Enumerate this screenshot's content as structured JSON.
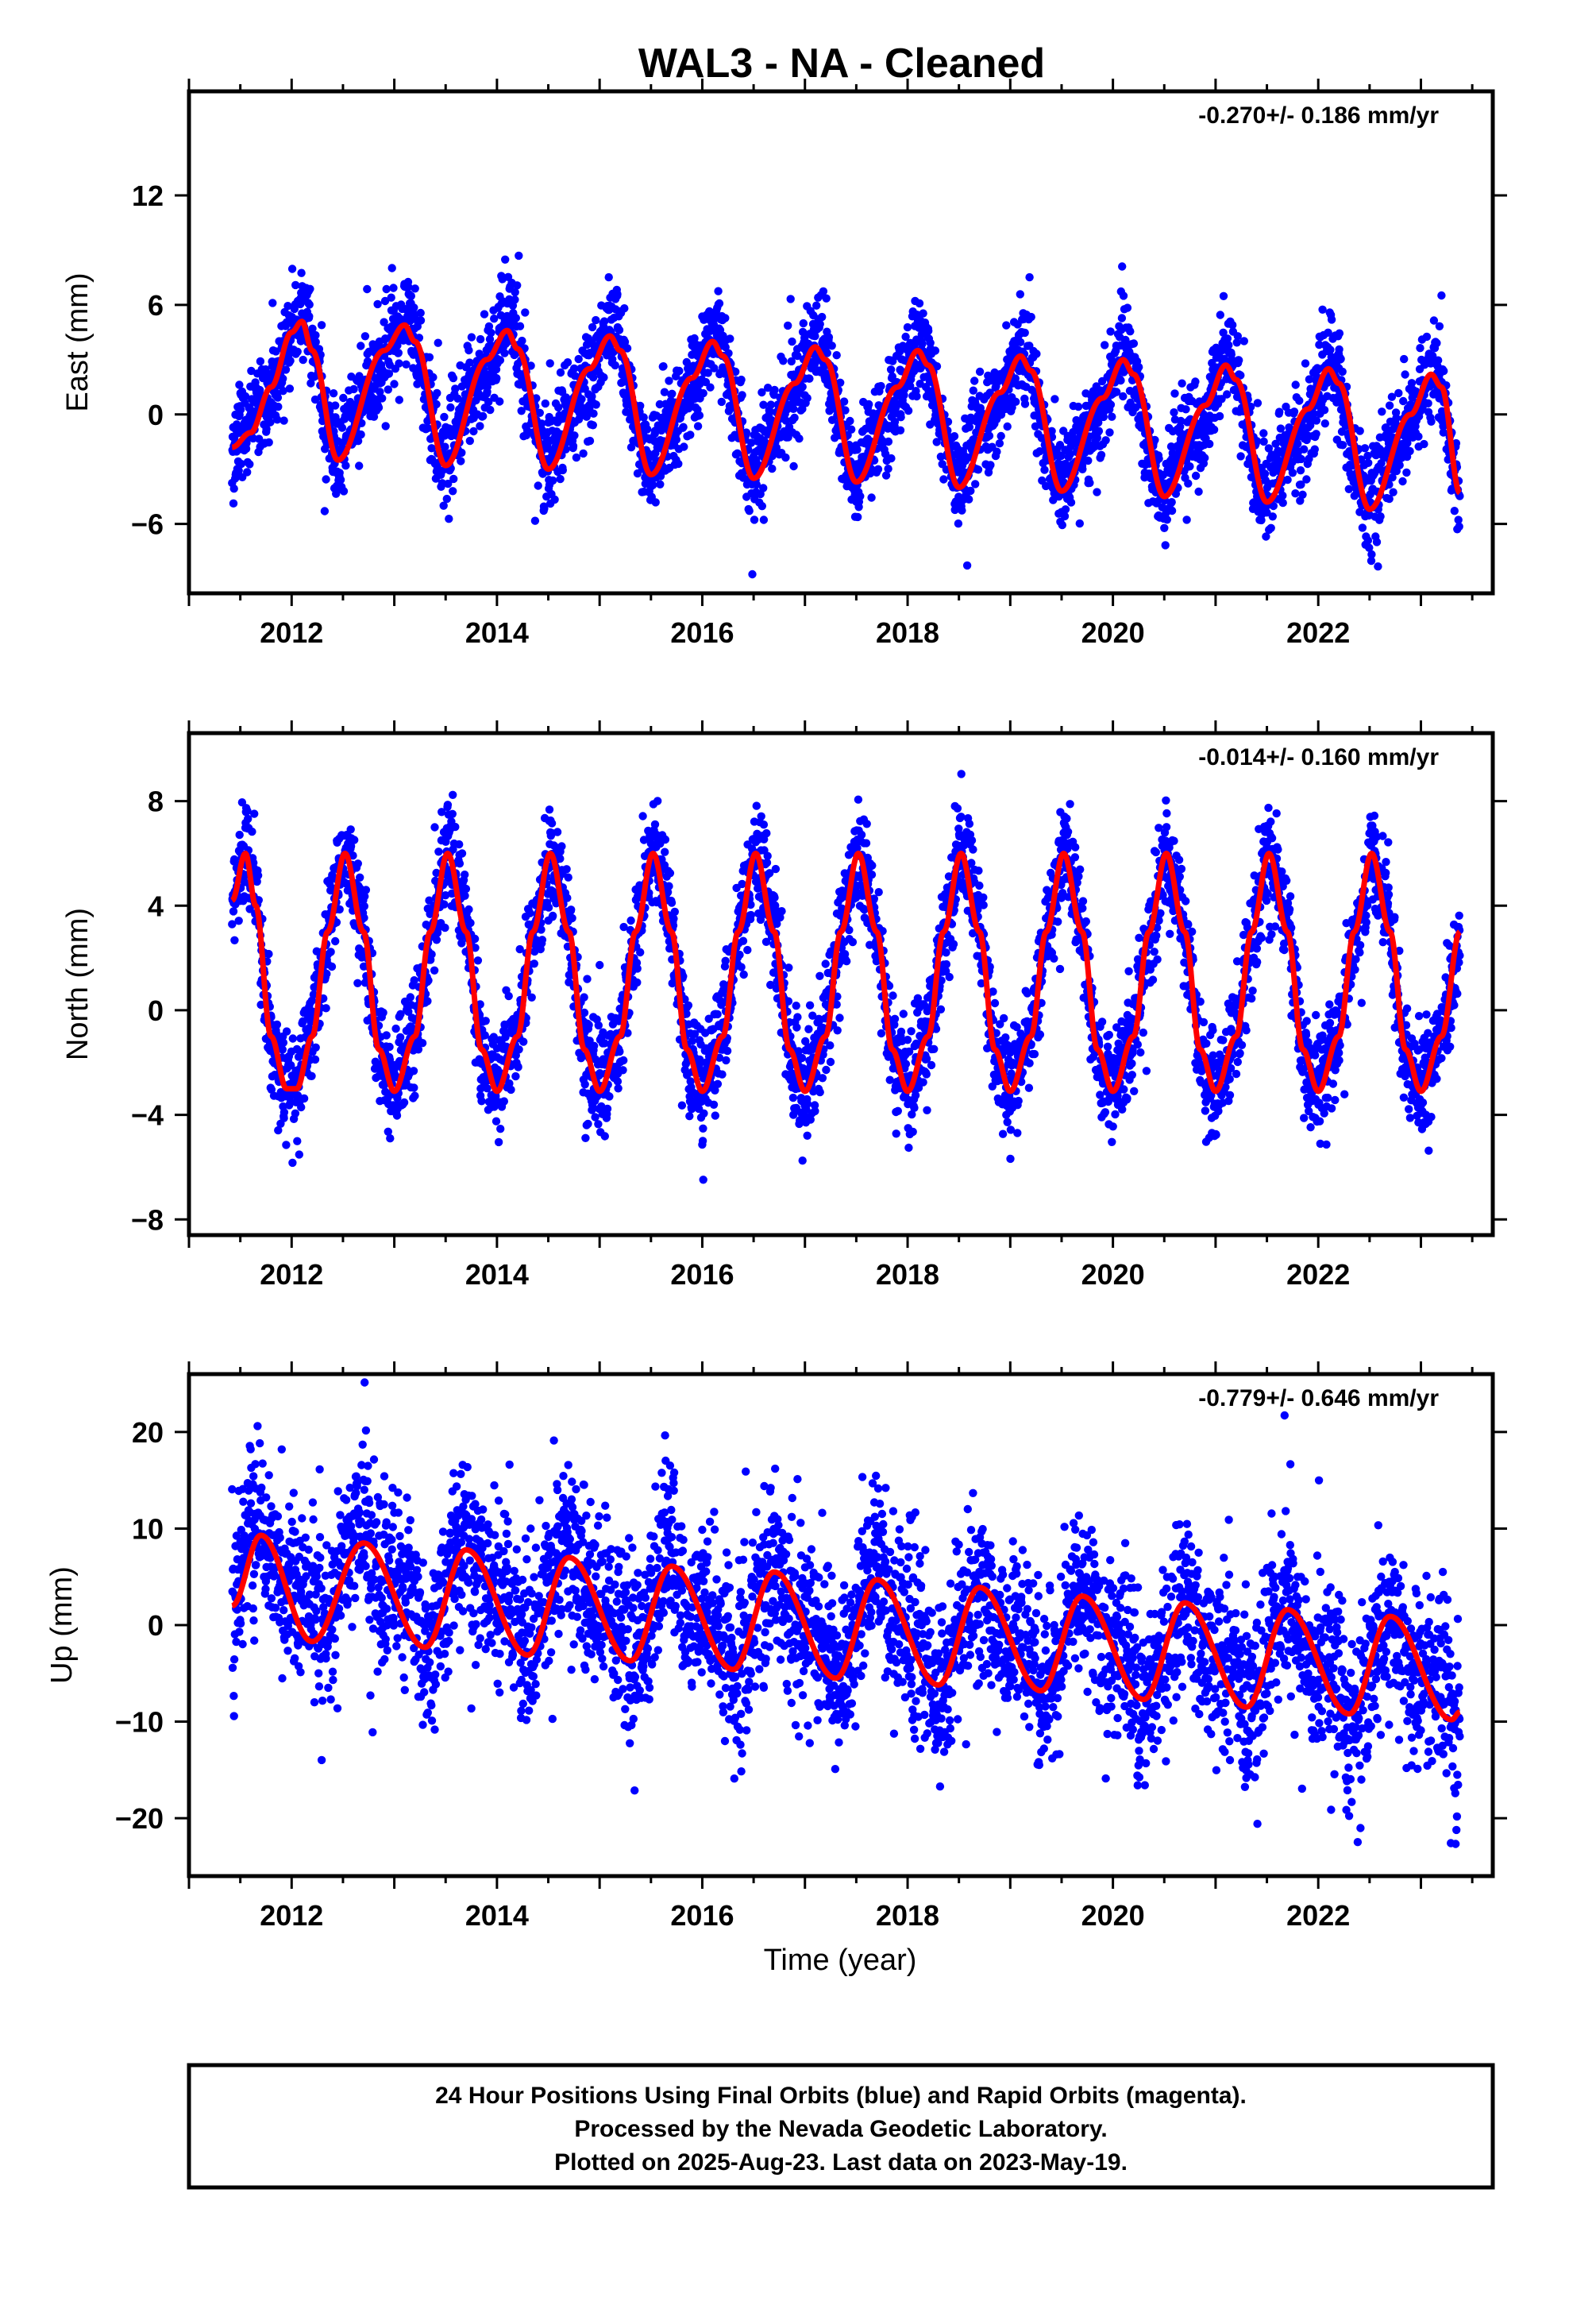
{
  "title": "WAL3  - NA - Cleaned",
  "x_axis_label": "Time (year)",
  "footer": {
    "line1": "24 Hour Positions Using Final Orbits (blue) and Rapid Orbits (magenta).",
    "line2": "Processed by the Nevada Geodetic Laboratory.",
    "line3": "Plotted on 2025-Aug-23. Last data on 2023-May-19."
  },
  "colors": {
    "points": "#0000ff",
    "fit": "#ff0000",
    "frame": "#000000"
  },
  "chart_data": [
    {
      "type": "scatter",
      "component": "east",
      "ylabel": "East (mm)",
      "rate_label": "-0.270+/- 0.186 mm/yr",
      "xlim": [
        2011.0,
        2023.7
      ],
      "ylim": [
        -9.8,
        17.7
      ],
      "xticks": [
        2012,
        2014,
        2016,
        2018,
        2020,
        2022
      ],
      "yticks": [
        -6,
        0,
        6,
        12
      ],
      "observations": {
        "start": 2011.42,
        "end": 2023.38,
        "step": 0.0027,
        "fit_offset": 0.0,
        "trend": -0.27,
        "scatter": 1.3,
        "semiannual": 0.6
      },
      "fit": {
        "x": [
          2011.42,
          2011.6,
          2011.8,
          2012.0,
          2012.1,
          2012.2,
          2012.45,
          2012.9,
          2013.1,
          2013.2,
          2013.5,
          2013.9,
          2014.1,
          2014.2,
          2014.5,
          2014.9,
          2015.1,
          2015.2,
          2015.5,
          2015.9,
          2016.1,
          2016.2,
          2016.5,
          2016.9,
          2017.1,
          2017.2,
          2017.5,
          2017.9,
          2018.1,
          2018.2,
          2018.5,
          2018.9,
          2019.1,
          2019.2,
          2019.5,
          2019.9,
          2020.1,
          2020.2,
          2020.5,
          2020.9,
          2021.1,
          2021.2,
          2021.5,
          2021.9,
          2022.1,
          2022.2,
          2022.5,
          2022.9,
          2023.1,
          2023.2,
          2023.38
        ],
        "y": [
          -1.8,
          -1.0,
          1.5,
          4.5,
          5.1,
          3.5,
          -2.5,
          3.5,
          4.9,
          4.0,
          -2.8,
          3.0,
          4.6,
          3.6,
          -3.0,
          2.5,
          4.3,
          3.5,
          -3.3,
          2.0,
          4.0,
          3.2,
          -3.5,
          1.7,
          3.7,
          3.0,
          -3.7,
          1.5,
          3.5,
          2.7,
          -4.0,
          1.2,
          3.2,
          2.4,
          -4.2,
          0.9,
          3.0,
          2.2,
          -4.5,
          0.5,
          2.7,
          1.9,
          -4.8,
          0.3,
          2.5,
          1.7,
          -5.2,
          0.0,
          2.2,
          1.5,
          -4.3
        ]
      }
    },
    {
      "type": "scatter",
      "component": "north",
      "ylabel": "North (mm)",
      "rate_label": "-0.014+/- 0.160 mm/yr",
      "xlim": [
        2011.0,
        2023.7
      ],
      "ylim": [
        -8.6,
        10.6
      ],
      "xticks": [
        2012,
        2014,
        2016,
        2018,
        2020,
        2022
      ],
      "yticks": [
        -8,
        -4,
        0,
        4,
        8
      ],
      "observations": {
        "start": 2011.42,
        "end": 2023.38,
        "step": 0.0027,
        "fit_offset": 0.2,
        "trend": 0.0,
        "scatter": 1.0,
        "semiannual": 0.3
      },
      "fit": {
        "x": [
          2011.42,
          2011.55,
          2011.65,
          2011.8,
          2011.95,
          2012.05,
          2012.2,
          2012.35,
          2012.52,
          2012.7,
          2012.85,
          2013.0,
          2013.2,
          2013.35,
          2013.52,
          2013.7,
          2013.85,
          2014.0,
          2014.2,
          2014.35,
          2014.52,
          2014.7,
          2014.85,
          2015.0,
          2015.2,
          2015.35,
          2015.52,
          2015.7,
          2015.85,
          2016.0,
          2016.2,
          2016.35,
          2016.52,
          2016.7,
          2016.85,
          2017.0,
          2017.2,
          2017.35,
          2017.52,
          2017.7,
          2017.85,
          2018.0,
          2018.2,
          2018.35,
          2018.52,
          2018.7,
          2018.85,
          2019.0,
          2019.2,
          2019.35,
          2019.52,
          2019.7,
          2019.85,
          2020.0,
          2020.2,
          2020.35,
          2020.52,
          2020.7,
          2020.85,
          2021.0,
          2021.2,
          2021.35,
          2021.52,
          2021.7,
          2021.85,
          2022.0,
          2022.2,
          2022.35,
          2022.52,
          2022.7,
          2022.85,
          2023.0,
          2023.2,
          2023.38
        ],
        "y": [
          4.2,
          6.0,
          4.0,
          -1.0,
          -3.0,
          -3.0,
          -1.0,
          3.0,
          6.0,
          3.0,
          -1.5,
          -3.1,
          -1.0,
          3.0,
          6.0,
          3.0,
          -1.5,
          -3.1,
          -1.0,
          3.0,
          6.0,
          3.0,
          -1.5,
          -3.1,
          -1.0,
          3.0,
          6.0,
          3.0,
          -1.5,
          -3.1,
          -1.0,
          3.0,
          6.0,
          3.0,
          -1.5,
          -3.1,
          -1.0,
          3.0,
          6.0,
          3.0,
          -1.5,
          -3.1,
          -1.0,
          3.0,
          6.0,
          3.0,
          -1.5,
          -3.1,
          -1.0,
          3.0,
          6.0,
          3.0,
          -1.5,
          -3.1,
          -1.0,
          3.0,
          6.0,
          3.0,
          -1.5,
          -3.1,
          -1.0,
          3.0,
          6.0,
          3.0,
          -1.5,
          -3.1,
          -1.0,
          3.0,
          6.0,
          3.0,
          -1.5,
          -3.1,
          -1.0,
          3.0
        ]
      }
    },
    {
      "type": "scatter",
      "component": "up",
      "ylabel": "Up (mm)",
      "rate_label": "-0.779+/- 0.646 mm/yr",
      "xlim": [
        2011.0,
        2023.7
      ],
      "ylim": [
        -26.0,
        26.0
      ],
      "xticks": [
        2012,
        2014,
        2016,
        2018,
        2020,
        2022
      ],
      "yticks": [
        -20,
        -10,
        0,
        10,
        20
      ],
      "observations": {
        "start": 2011.42,
        "end": 2023.38,
        "step": 0.0027,
        "fit_offset": 2.0,
        "trend": -0.6,
        "scatter": 4.5,
        "semiannual": 1.5
      },
      "fit": {
        "x": [
          2011.42,
          2011.7,
          2012.2,
          2012.7,
          2013.3,
          2013.7,
          2014.3,
          2014.7,
          2015.3,
          2015.7,
          2016.3,
          2016.7,
          2017.3,
          2017.7,
          2018.3,
          2018.7,
          2019.3,
          2019.7,
          2020.3,
          2020.7,
          2021.3,
          2021.7,
          2022.3,
          2022.7,
          2023.3,
          2023.38
        ],
        "y": [
          2.0,
          9.3,
          -1.7,
          8.5,
          -2.3,
          7.8,
          -3.1,
          7.0,
          -3.7,
          6.1,
          -4.6,
          5.5,
          -5.5,
          4.7,
          -6.2,
          3.9,
          -6.8,
          3.0,
          -7.7,
          2.3,
          -8.5,
          1.6,
          -9.2,
          0.9,
          -9.8,
          -9.0
        ]
      }
    }
  ]
}
